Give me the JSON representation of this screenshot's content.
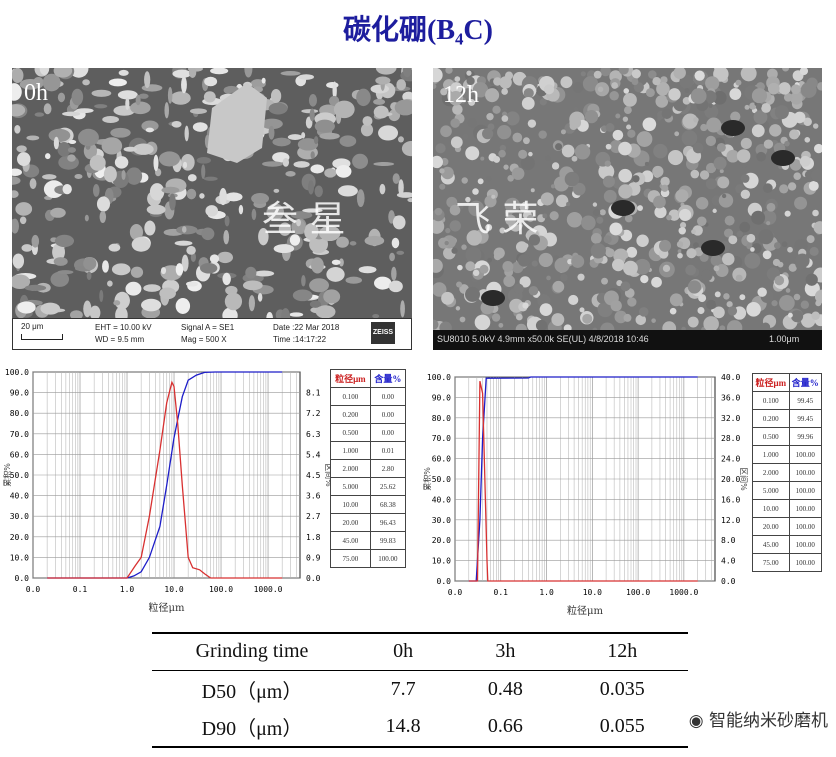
{
  "title": "碳化硼(B₄C)",
  "sem_left": {
    "label": "0h",
    "watermark": "叁  星",
    "scale_bar": "20 μm",
    "eht": "EHT = 10.00 kV",
    "wd": "WD =  9.5 mm",
    "signal": "Signal A = SE1",
    "mag": "Mag =    500 X",
    "date": "Date :22 Mar 2018",
    "time": "Time :14:17:22",
    "logo": "ZEISS"
  },
  "sem_right": {
    "label": "12h",
    "watermark": "飞  荣",
    "info": "SU8010 5.0kV 4.9mm x50.0k SE(UL) 4/8/2018 10:46",
    "scale_bar": "1.00μm"
  },
  "chart_data": [
    {
      "type": "line",
      "xlabel": "粒径μm",
      "ylabel": "累积%",
      "y2label": "区间%",
      "x_scale": "log",
      "x_ticks": [
        "0.0",
        "0.1",
        "1.0",
        "10.0",
        "100.0",
        "1000.0"
      ],
      "y_ticks": [
        "0.0",
        "10.0",
        "20.0",
        "30.0",
        "40.0",
        "50.0",
        "60.0",
        "70.0",
        "80.0",
        "90.0",
        "100.0"
      ],
      "y2_ticks": [
        "0.0",
        "0.9",
        "1.8",
        "2.7",
        "3.6",
        "4.5",
        "5.4",
        "6.3",
        "7.2",
        "8.1"
      ],
      "ylim": [
        0,
        100
      ],
      "y2lim": [
        0,
        9
      ],
      "grid": true,
      "series": [
        {
          "color": "#1c1cc8",
          "x": [
            0.02,
            1.0,
            1.4,
            2,
            3,
            5,
            7,
            10,
            15,
            20,
            30,
            45,
            75,
            2000
          ],
          "y": [
            0,
            0,
            1,
            3,
            10,
            25,
            45,
            68,
            88,
            96,
            98.5,
            99.8,
            100,
            100
          ]
        },
        {
          "color": "#d83030",
          "x": [
            0.02,
            1.0,
            1.5,
            2,
            3,
            5,
            7,
            9,
            10,
            12,
            15,
            20,
            25,
            35,
            45,
            60,
            2000
          ],
          "y": [
            0,
            0,
            6,
            10,
            30,
            62,
            85,
            95,
            93,
            75,
            45,
            10,
            5,
            4,
            2,
            0,
            0
          ]
        }
      ],
      "table": {
        "headers": [
          "粒径μm",
          "含量%"
        ],
        "rows": [
          [
            "0.100",
            "0.00"
          ],
          [
            "0.200",
            "0.00"
          ],
          [
            "0.500",
            "0.00"
          ],
          [
            "1.000",
            "0.01"
          ],
          [
            "2.000",
            "2.80"
          ],
          [
            "5.000",
            "25.62"
          ],
          [
            "10.00",
            "68.38"
          ],
          [
            "20.00",
            "96.43"
          ],
          [
            "45.00",
            "99.83"
          ],
          [
            "75.00",
            "100.00"
          ]
        ]
      }
    },
    {
      "type": "line",
      "xlabel": "粒径μm",
      "ylabel": "累积%",
      "y2label": "区间%",
      "x_scale": "log",
      "x_ticks": [
        "0.0",
        "0.1",
        "1.0",
        "10.0",
        "100.0",
        "1000.0"
      ],
      "y_ticks": [
        "0.0",
        "10.0",
        "20.0",
        "30.0",
        "40.0",
        "50.0",
        "60.0",
        "70.0",
        "80.0",
        "90.0",
        "100.0"
      ],
      "y2_ticks": [
        "0.0",
        "4.0",
        "8.0",
        "12.0",
        "16.0",
        "20.0",
        "24.0",
        "28.0",
        "32.0",
        "36.0",
        "40.0"
      ],
      "ylim": [
        0,
        100
      ],
      "y2lim": [
        0,
        40
      ],
      "grid": true,
      "series": [
        {
          "color": "#1c1cc8",
          "x": [
            0.02,
            0.029,
            0.035,
            0.04,
            0.048,
            0.4,
            0.45,
            2000
          ],
          "y": [
            0,
            0,
            30,
            70,
            99.4,
            99.5,
            100,
            100
          ]
        },
        {
          "color": "#d83030",
          "x": [
            0.02,
            0.031,
            0.035,
            0.04,
            0.05,
            0.052,
            2000
          ],
          "y": [
            0,
            0,
            98,
            92,
            10,
            0,
            0
          ]
        }
      ],
      "table": {
        "headers": [
          "粒径μm",
          "含量%"
        ],
        "rows": [
          [
            "0.100",
            "99.45"
          ],
          [
            "0.200",
            "99.45"
          ],
          [
            "0.500",
            "99.96"
          ],
          [
            "1.000",
            "100.00"
          ],
          [
            "2.000",
            "100.00"
          ],
          [
            "5.000",
            "100.00"
          ],
          [
            "10.00",
            "100.00"
          ],
          [
            "20.00",
            "100.00"
          ],
          [
            "45.00",
            "100.00"
          ],
          [
            "75.00",
            "100.00"
          ]
        ]
      }
    }
  ],
  "summary_table": {
    "headers": [
      "Grinding time",
      "0h",
      "3h",
      "12h"
    ],
    "rows": [
      [
        "D50（μm）",
        "7.7",
        "0.48",
        "0.035"
      ],
      [
        "D90（μm）",
        "14.8",
        "0.66",
        "0.055"
      ]
    ]
  },
  "watermark": "智能纳米砂磨机"
}
